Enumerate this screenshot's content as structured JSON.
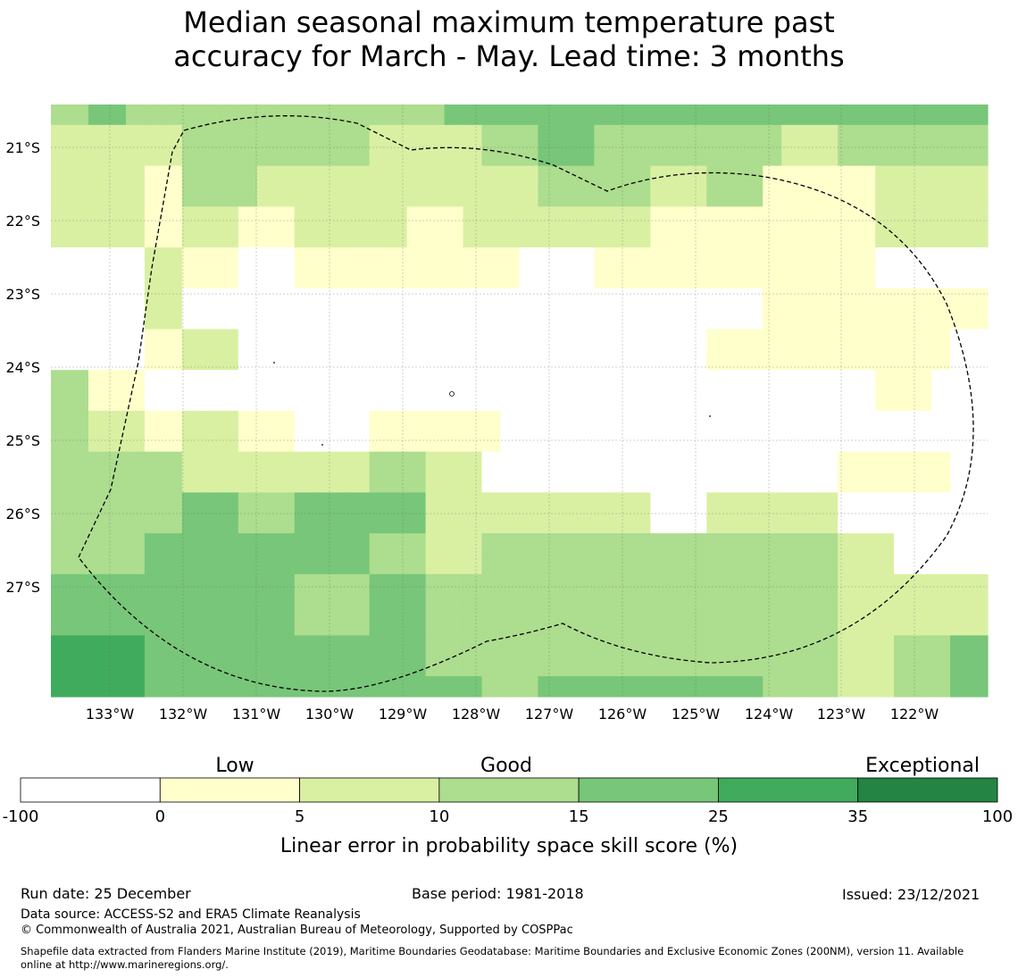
{
  "title": {
    "line1": "Median seasonal maximum temperature past",
    "line2": "accuracy for March - May. Lead time: 3 months"
  },
  "map": {
    "lon_labels": [
      "133°W",
      "132°W",
      "131°W",
      "130°W",
      "129°W",
      "128°W",
      "127°W",
      "126°W",
      "125°W",
      "124°W",
      "123°W",
      "122°W"
    ],
    "lat_labels": [
      "21°S",
      "22°S",
      "23°S",
      "24°S",
      "25°S",
      "26°S",
      "27°S"
    ],
    "colors": {
      "c0": "#ffffff",
      "c1": "#ffffcc",
      "c2": "#d9f0a3",
      "c3": "#addd8e",
      "c4": "#78c679",
      "c5": "#41ab5d",
      "c6": "#238443"
    },
    "grid_rows": [
      [
        3,
        3,
        4,
        4,
        3,
        3,
        3,
        3,
        3,
        3,
        3,
        3,
        3,
        3,
        3,
        3,
        3,
        3,
        3,
        3,
        3,
        4,
        4,
        4,
        4,
        4,
        4,
        4,
        4,
        4,
        4,
        4,
        4,
        4,
        4,
        4,
        4,
        4,
        4,
        4,
        4,
        4,
        4,
        4,
        4,
        4,
        4,
        4,
        4,
        4
      ],
      [
        2,
        2,
        2,
        2,
        2,
        2,
        2,
        3,
        3,
        3,
        3,
        3,
        3,
        3,
        3,
        3,
        3,
        2,
        2,
        2,
        2,
        2,
        2,
        3,
        3,
        3,
        4,
        4,
        4,
        3,
        3,
        3,
        3,
        3,
        3,
        3,
        3,
        3,
        3,
        2,
        2,
        2,
        3,
        3,
        3,
        3,
        3,
        3,
        3,
        3
      ],
      [
        2,
        2,
        2,
        2,
        2,
        2,
        2,
        3,
        3,
        3,
        3,
        3,
        3,
        3,
        3,
        3,
        3,
        2,
        2,
        2,
        2,
        2,
        2,
        3,
        3,
        3,
        4,
        4,
        4,
        3,
        3,
        3,
        3,
        3,
        3,
        3,
        3,
        3,
        3,
        2,
        2,
        2,
        3,
        3,
        3,
        3,
        3,
        3,
        3,
        3
      ],
      [
        2,
        2,
        2,
        2,
        2,
        1,
        1,
        3,
        3,
        3,
        3,
        2,
        2,
        2,
        2,
        2,
        2,
        2,
        2,
        2,
        2,
        2,
        2,
        2,
        2,
        2,
        3,
        3,
        3,
        3,
        3,
        3,
        2,
        2,
        2,
        3,
        3,
        3,
        1,
        1,
        1,
        1,
        1,
        1,
        2,
        2,
        2,
        2,
        2,
        2
      ],
      [
        2,
        2,
        2,
        2,
        2,
        1,
        1,
        3,
        3,
        3,
        3,
        2,
        2,
        2,
        2,
        2,
        2,
        2,
        2,
        2,
        2,
        2,
        2,
        2,
        2,
        2,
        3,
        3,
        3,
        3,
        3,
        3,
        2,
        2,
        2,
        3,
        3,
        3,
        1,
        1,
        1,
        1,
        1,
        1,
        2,
        2,
        2,
        2,
        2,
        2
      ],
      [
        2,
        2,
        2,
        2,
        2,
        1,
        1,
        2,
        2,
        2,
        1,
        1,
        1,
        2,
        2,
        2,
        2,
        2,
        2,
        1,
        1,
        1,
        2,
        2,
        2,
        2,
        2,
        2,
        2,
        2,
        2,
        2,
        1,
        1,
        1,
        1,
        1,
        1,
        1,
        1,
        1,
        1,
        1,
        1,
        2,
        2,
        2,
        2,
        2,
        2
      ],
      [
        2,
        2,
        2,
        2,
        2,
        1,
        1,
        2,
        2,
        2,
        1,
        1,
        1,
        2,
        2,
        2,
        2,
        2,
        2,
        1,
        1,
        1,
        2,
        2,
        2,
        2,
        2,
        2,
        2,
        2,
        2,
        2,
        1,
        1,
        1,
        1,
        1,
        1,
        1,
        1,
        1,
        1,
        1,
        1,
        2,
        2,
        2,
        2,
        2,
        2
      ],
      [
        0,
        0,
        0,
        0,
        0,
        2,
        2,
        1,
        1,
        1,
        0,
        0,
        0,
        1,
        1,
        1,
        1,
        1,
        1,
        1,
        1,
        1,
        1,
        1,
        1,
        0,
        0,
        0,
        0,
        1,
        1,
        1,
        1,
        1,
        1,
        1,
        1,
        1,
        1,
        1,
        1,
        1,
        1,
        1,
        0,
        0,
        0,
        0,
        0,
        0
      ],
      [
        0,
        0,
        0,
        0,
        0,
        2,
        2,
        1,
        1,
        1,
        0,
        0,
        0,
        1,
        1,
        1,
        1,
        1,
        1,
        1,
        1,
        1,
        1,
        1,
        1,
        0,
        0,
        0,
        0,
        1,
        1,
        1,
        1,
        1,
        1,
        1,
        1,
        1,
        1,
        1,
        1,
        1,
        1,
        1,
        0,
        0,
        0,
        0,
        0,
        0
      ],
      [
        0,
        0,
        0,
        0,
        0,
        2,
        2,
        0,
        0,
        0,
        0,
        0,
        0,
        0,
        0,
        0,
        0,
        0,
        0,
        0,
        0,
        0,
        0,
        0,
        0,
        0,
        0,
        0,
        0,
        0,
        0,
        0,
        0,
        0,
        0,
        0,
        0,
        0,
        1,
        1,
        1,
        1,
        1,
        1,
        1,
        1,
        1,
        1,
        1,
        1
      ],
      [
        0,
        0,
        0,
        0,
        0,
        2,
        2,
        0,
        0,
        0,
        0,
        0,
        0,
        0,
        0,
        0,
        0,
        0,
        0,
        0,
        0,
        0,
        0,
        0,
        0,
        0,
        0,
        0,
        0,
        0,
        0,
        0,
        0,
        0,
        0,
        0,
        0,
        0,
        1,
        1,
        1,
        1,
        1,
        1,
        1,
        1,
        1,
        1,
        1,
        1
      ],
      [
        0,
        0,
        0,
        0,
        0,
        1,
        1,
        2,
        2,
        2,
        0,
        0,
        0,
        0,
        0,
        0,
        0,
        0,
        0,
        0,
        0,
        0,
        0,
        0,
        0,
        0,
        0,
        0,
        0,
        0,
        0,
        0,
        0,
        0,
        0,
        1,
        1,
        1,
        1,
        1,
        1,
        1,
        1,
        1,
        1,
        1,
        1,
        1,
        0,
        0
      ],
      [
        0,
        0,
        0,
        0,
        0,
        1,
        1,
        2,
        2,
        2,
        0,
        0,
        0,
        0,
        0,
        0,
        0,
        0,
        0,
        0,
        0,
        0,
        0,
        0,
        0,
        0,
        0,
        0,
        0,
        0,
        0,
        0,
        0,
        0,
        0,
        1,
        1,
        1,
        1,
        1,
        1,
        1,
        1,
        1,
        1,
        1,
        1,
        1,
        0,
        0
      ],
      [
        3,
        3,
        1,
        1,
        1,
        0,
        0,
        0,
        0,
        0,
        0,
        0,
        0,
        0,
        0,
        0,
        0,
        0,
        0,
        0,
        0,
        0,
        0,
        0,
        0,
        0,
        0,
        0,
        0,
        0,
        0,
        0,
        0,
        0,
        0,
        0,
        0,
        0,
        0,
        0,
        0,
        0,
        0,
        0,
        1,
        1,
        1,
        0,
        0,
        0
      ],
      [
        3,
        3,
        1,
        1,
        1,
        0,
        0,
        0,
        0,
        0,
        0,
        0,
        0,
        0,
        0,
        0,
        0,
        0,
        0,
        0,
        0,
        0,
        0,
        0,
        0,
        0,
        0,
        0,
        0,
        0,
        0,
        0,
        0,
        0,
        0,
        0,
        0,
        0,
        0,
        0,
        0,
        0,
        0,
        0,
        1,
        1,
        1,
        0,
        0,
        0
      ],
      [
        3,
        3,
        2,
        2,
        2,
        1,
        1,
        2,
        2,
        2,
        1,
        1,
        1,
        0,
        0,
        0,
        0,
        1,
        1,
        1,
        1,
        1,
        1,
        1,
        0,
        0,
        0,
        0,
        0,
        0,
        0,
        0,
        0,
        0,
        0,
        0,
        0,
        0,
        0,
        0,
        0,
        0,
        0,
        0,
        0,
        0,
        0,
        0,
        0,
        0
      ],
      [
        3,
        3,
        2,
        2,
        2,
        1,
        1,
        2,
        2,
        2,
        1,
        1,
        1,
        0,
        0,
        0,
        0,
        1,
        1,
        1,
        1,
        1,
        1,
        1,
        0,
        0,
        0,
        0,
        0,
        0,
        0,
        0,
        0,
        0,
        0,
        0,
        0,
        0,
        0,
        0,
        0,
        0,
        0,
        0,
        0,
        0,
        0,
        0,
        0,
        0
      ],
      [
        3,
        3,
        3,
        3,
        3,
        3,
        3,
        2,
        2,
        2,
        2,
        2,
        2,
        2,
        2,
        2,
        2,
        3,
        3,
        3,
        2,
        2,
        2,
        0,
        0,
        0,
        0,
        0,
        0,
        0,
        0,
        0,
        0,
        0,
        0,
        0,
        0,
        0,
        0,
        0,
        0,
        0,
        1,
        1,
        1,
        1,
        1,
        1,
        0,
        0
      ],
      [
        3,
        3,
        3,
        3,
        3,
        3,
        3,
        2,
        2,
        2,
        2,
        2,
        2,
        2,
        2,
        2,
        2,
        3,
        3,
        3,
        2,
        2,
        2,
        0,
        0,
        0,
        0,
        0,
        0,
        0,
        0,
        0,
        0,
        0,
        0,
        0,
        0,
        0,
        0,
        0,
        0,
        0,
        1,
        1,
        1,
        1,
        1,
        1,
        0,
        0
      ],
      [
        3,
        3,
        3,
        3,
        3,
        3,
        3,
        4,
        4,
        4,
        3,
        3,
        3,
        4,
        4,
        4,
        4,
        4,
        4,
        4,
        2,
        2,
        2,
        2,
        2,
        2,
        2,
        2,
        2,
        2,
        2,
        2,
        0,
        0,
        0,
        2,
        2,
        2,
        2,
        2,
        2,
        2,
        0,
        0,
        0,
        0,
        0,
        0,
        0,
        0
      ],
      [
        3,
        3,
        3,
        3,
        3,
        3,
        3,
        4,
        4,
        4,
        3,
        3,
        3,
        4,
        4,
        4,
        4,
        4,
        4,
        4,
        2,
        2,
        2,
        2,
        2,
        2,
        2,
        2,
        2,
        2,
        2,
        2,
        0,
        0,
        0,
        2,
        2,
        2,
        2,
        2,
        2,
        2,
        0,
        0,
        0,
        0,
        0,
        0,
        0,
        0
      ],
      [
        3,
        3,
        3,
        3,
        3,
        4,
        4,
        4,
        4,
        4,
        4,
        4,
        4,
        4,
        4,
        4,
        4,
        3,
        3,
        3,
        2,
        2,
        2,
        3,
        3,
        3,
        3,
        3,
        3,
        3,
        3,
        3,
        3,
        3,
        3,
        3,
        3,
        3,
        3,
        3,
        3,
        3,
        2,
        2,
        2,
        0,
        0,
        0,
        0,
        0
      ],
      [
        3,
        3,
        3,
        3,
        3,
        4,
        4,
        4,
        4,
        4,
        4,
        4,
        4,
        4,
        4,
        4,
        4,
        3,
        3,
        3,
        2,
        2,
        2,
        3,
        3,
        3,
        3,
        3,
        3,
        3,
        3,
        3,
        3,
        3,
        3,
        3,
        3,
        3,
        3,
        3,
        3,
        3,
        2,
        2,
        2,
        0,
        0,
        0,
        0,
        0
      ],
      [
        4,
        4,
        4,
        4,
        4,
        4,
        4,
        4,
        4,
        4,
        4,
        4,
        4,
        3,
        3,
        3,
        3,
        4,
        4,
        4,
        3,
        3,
        3,
        3,
        3,
        3,
        3,
        3,
        3,
        3,
        3,
        3,
        3,
        3,
        3,
        3,
        3,
        3,
        3,
        3,
        3,
        3,
        2,
        2,
        2,
        2,
        2,
        2,
        2,
        2
      ],
      [
        4,
        4,
        4,
        4,
        4,
        4,
        4,
        4,
        4,
        4,
        4,
        4,
        4,
        3,
        3,
        3,
        3,
        4,
        4,
        4,
        3,
        3,
        3,
        3,
        3,
        3,
        3,
        3,
        3,
        3,
        3,
        3,
        3,
        3,
        3,
        3,
        3,
        3,
        3,
        3,
        3,
        3,
        2,
        2,
        2,
        2,
        2,
        2,
        2,
        2
      ],
      [
        4,
        4,
        4,
        4,
        4,
        4,
        4,
        4,
        4,
        4,
        4,
        4,
        4,
        3,
        3,
        3,
        3,
        4,
        4,
        4,
        3,
        3,
        3,
        3,
        3,
        3,
        3,
        3,
        3,
        3,
        3,
        3,
        3,
        3,
        3,
        3,
        3,
        3,
        3,
        3,
        3,
        3,
        2,
        2,
        2,
        2,
        2,
        2,
        2,
        2
      ],
      [
        5,
        5,
        5,
        5,
        5,
        4,
        4,
        4,
        4,
        4,
        4,
        4,
        4,
        4,
        4,
        4,
        4,
        4,
        4,
        4,
        3,
        3,
        3,
        3,
        3,
        3,
        3,
        3,
        3,
        3,
        3,
        3,
        3,
        3,
        3,
        3,
        3,
        3,
        3,
        3,
        3,
        3,
        2,
        2,
        2,
        3,
        3,
        3,
        4,
        4
      ],
      [
        5,
        5,
        5,
        5,
        5,
        4,
        4,
        4,
        4,
        4,
        4,
        4,
        4,
        4,
        4,
        4,
        4,
        4,
        4,
        4,
        3,
        3,
        3,
        3,
        3,
        3,
        3,
        3,
        3,
        3,
        3,
        3,
        3,
        3,
        3,
        3,
        3,
        3,
        3,
        3,
        3,
        3,
        2,
        2,
        2,
        3,
        3,
        3,
        4,
        4
      ],
      [
        5,
        5,
        5,
        5,
        5,
        4,
        4,
        4,
        4,
        4,
        4,
        4,
        4,
        4,
        4,
        4,
        4,
        4,
        4,
        4,
        4,
        4,
        4,
        3,
        3,
        3,
        4,
        4,
        4,
        4,
        4,
        4,
        4,
        4,
        4,
        4,
        4,
        4,
        3,
        3,
        3,
        3,
        2,
        2,
        2,
        3,
        3,
        3,
        4,
        4
      ]
    ]
  },
  "colorbar": {
    "categories": [
      "Low",
      "Good",
      "Exceptional"
    ],
    "ticks": [
      "-100",
      "0",
      "5",
      "10",
      "15",
      "25",
      "35",
      "100"
    ],
    "label": "Linear error in probability space skill score (%)"
  },
  "footer": {
    "run_date": "Run date: 25 December",
    "base_period": "Base period: 1981-2018",
    "issued": "Issued: 23/12/2021",
    "data_source": "Data source: ACCESS-S2 and ERA5 Climate Reanalysis",
    "copyright": "© Commonwealth of Australia 2021, Australian Bureau of Meteorology, Supported by COSPPac",
    "shapefile_line1": "Shapefile data extracted from Flanders Marine Institute (2019), Maritime Boundaries Geodatabase: Maritime Boundaries and Exclusive Economic Zones (200NM), version 11. Available",
    "shapefile_line2": "online at http://www.marineregions.org/."
  }
}
